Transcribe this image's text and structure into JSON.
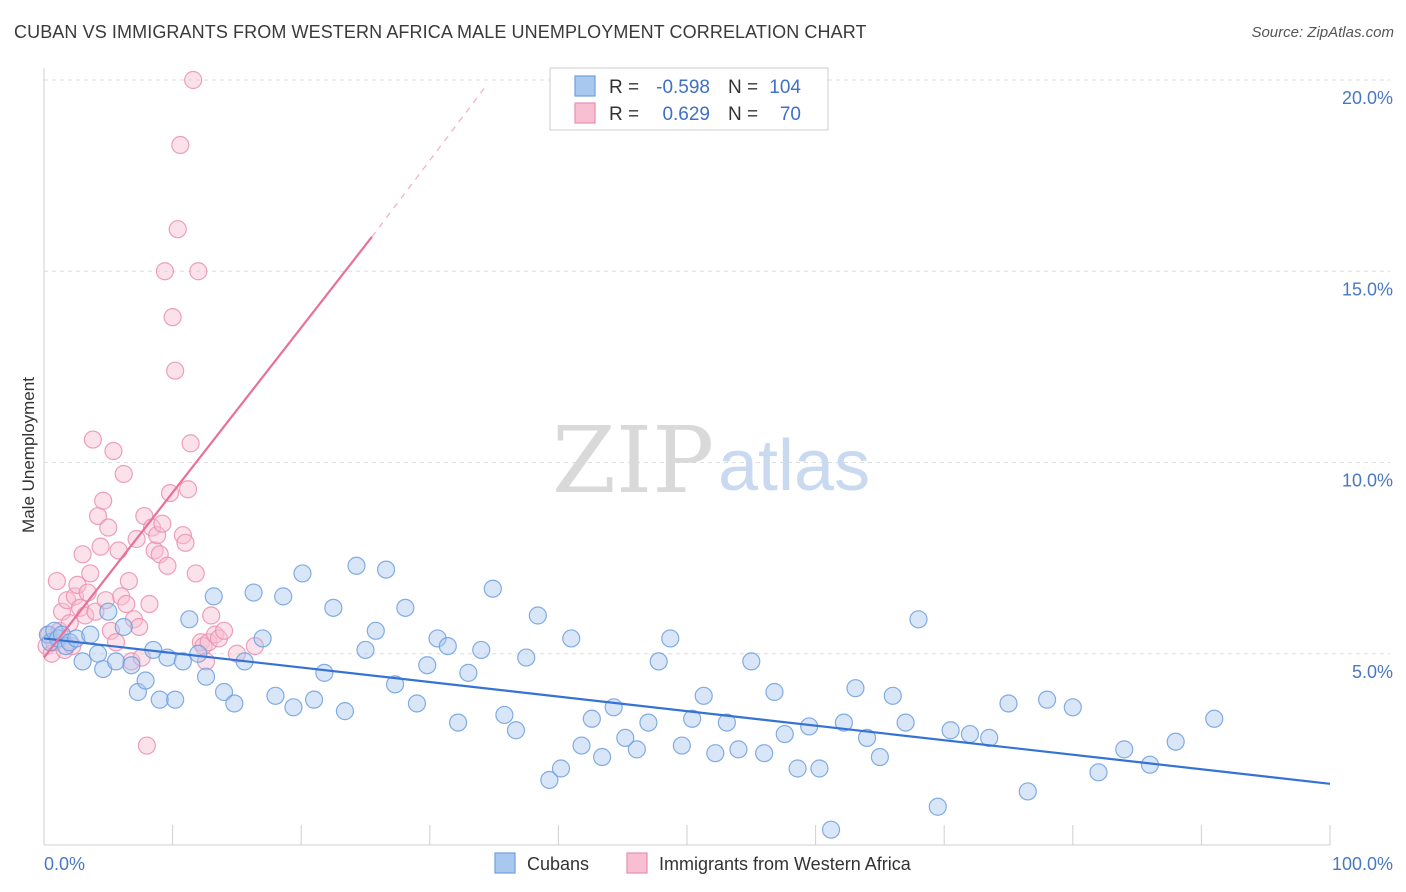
{
  "header": {
    "title": "CUBAN VS IMMIGRANTS FROM WESTERN AFRICA MALE UNEMPLOYMENT CORRELATION CHART",
    "source": "Source: ZipAtlas.com"
  },
  "watermark": {
    "zip": "ZIP",
    "atlas": "atlas"
  },
  "legend_box": {
    "rows": [
      {
        "r_label": "R =",
        "r_value": "-0.598",
        "n_label": "N =",
        "n_value": "104"
      },
      {
        "r_label": "R =",
        "r_value": "0.629",
        "n_label": "N =",
        "n_value": "70"
      }
    ]
  },
  "chart_data": {
    "type": "scatter",
    "title": "CUBAN VS IMMIGRANTS FROM WESTERN AFRICA MALE UNEMPLOYMENT CORRELATION CHART",
    "xlabel": "",
    "ylabel": "Male Unemployment",
    "xlim": [
      0,
      100
    ],
    "ylim": [
      0,
      20
    ],
    "x_tick_labels": [
      "0.0%",
      "100.0%"
    ],
    "y_ticks": [
      5,
      10,
      15,
      20
    ],
    "y_tick_labels": [
      "5.0%",
      "10.0%",
      "15.0%",
      "20.0%"
    ],
    "grid": true,
    "legend_position": "bottom",
    "series": [
      {
        "name": "Cubans",
        "color": "#7aaae8",
        "line_color": "#3473d4",
        "r": -0.598,
        "n": 104,
        "trend": {
          "x": [
            0,
            100
          ],
          "y": [
            5.4,
            1.6
          ]
        },
        "x": [
          0.3,
          0.5,
          0.8,
          1.1,
          1.4,
          1.7,
          2.0,
          2.5,
          3.0,
          3.6,
          4.2,
          4.6,
          5.0,
          5.6,
          6.2,
          6.8,
          7.3,
          7.9,
          8.5,
          9.0,
          9.6,
          10.2,
          10.8,
          11.3,
          12.0,
          12.6,
          13.2,
          14.0,
          14.8,
          15.6,
          16.3,
          17.0,
          18.0,
          18.6,
          19.4,
          20.1,
          21.0,
          21.8,
          22.5,
          23.4,
          24.3,
          25.0,
          25.8,
          26.6,
          27.3,
          28.1,
          29.0,
          29.8,
          30.6,
          31.4,
          32.2,
          33.0,
          34.0,
          34.9,
          35.8,
          36.7,
          37.5,
          38.4,
          39.3,
          40.2,
          41.0,
          41.8,
          42.6,
          43.4,
          44.3,
          45.2,
          46.1,
          47.0,
          47.8,
          48.7,
          49.6,
          50.4,
          51.3,
          52.2,
          53.1,
          54.0,
          55.0,
          56.0,
          56.8,
          57.6,
          58.6,
          59.5,
          60.3,
          61.2,
          62.2,
          63.1,
          64.0,
          65.0,
          66.0,
          67.0,
          68.0,
          69.5,
          70.5,
          72.0,
          73.5,
          75.0,
          76.5,
          78.0,
          80.0,
          82.0,
          84.0,
          86.0,
          88.0,
          91.0
        ],
        "y": [
          5.5,
          5.3,
          5.6,
          5.4,
          5.5,
          5.2,
          5.3,
          5.4,
          4.8,
          5.5,
          5.0,
          4.6,
          6.1,
          4.8,
          5.7,
          4.7,
          4.0,
          4.3,
          5.1,
          3.8,
          4.9,
          3.8,
          4.8,
          5.9,
          5.0,
          4.4,
          6.5,
          4.0,
          3.7,
          4.8,
          6.6,
          5.4,
          3.9,
          6.5,
          3.6,
          7.1,
          3.8,
          4.5,
          6.2,
          3.5,
          7.3,
          5.1,
          5.6,
          7.2,
          4.2,
          6.2,
          3.7,
          4.7,
          5.4,
          5.2,
          3.2,
          4.5,
          5.1,
          6.7,
          3.4,
          3.0,
          4.9,
          6.0,
          1.7,
          2.0,
          5.4,
          2.6,
          3.3,
          2.3,
          3.6,
          2.8,
          2.5,
          3.2,
          4.8,
          5.4,
          2.6,
          3.3,
          3.9,
          2.4,
          3.2,
          2.5,
          4.8,
          2.4,
          4.0,
          2.9,
          2.0,
          3.1,
          2.0,
          0.4,
          3.2,
          4.1,
          2.8,
          2.3,
          3.9,
          3.2,
          5.9,
          1.0,
          3.0,
          2.9,
          2.8,
          3.7,
          1.4,
          3.8,
          3.6,
          1.9,
          2.5,
          2.1,
          2.7,
          3.3
        ]
      },
      {
        "name": "Immigrants from Western Africa",
        "color": "#f4a3bd",
        "line_color": "#e8709a",
        "r": 0.629,
        "n": 70,
        "trend": {
          "x": [
            0,
            25.5
          ],
          "y": [
            4.9,
            15.9
          ]
        },
        "trend_dashed": {
          "x": [
            25.5,
            34.5
          ],
          "y": [
            15.9,
            19.9
          ]
        },
        "x": [
          0.2,
          0.4,
          0.6,
          0.8,
          1.0,
          1.2,
          1.4,
          1.6,
          1.8,
          2.0,
          2.2,
          2.4,
          2.6,
          2.8,
          3.0,
          3.2,
          3.4,
          3.6,
          3.8,
          4.0,
          4.2,
          4.4,
          4.6,
          4.8,
          5.0,
          5.2,
          5.4,
          5.6,
          5.8,
          6.0,
          6.2,
          6.4,
          6.6,
          6.8,
          7.0,
          7.2,
          7.4,
          7.6,
          7.8,
          8.0,
          8.2,
          8.4,
          8.6,
          8.8,
          9.0,
          9.2,
          9.4,
          9.6,
          9.8,
          10.0,
          10.2,
          10.4,
          10.6,
          10.8,
          11.0,
          11.2,
          11.4,
          11.6,
          11.8,
          12.0,
          12.2,
          12.4,
          12.6,
          12.8,
          13.0,
          13.3,
          13.6,
          14.0,
          15.0,
          16.4
        ],
        "y": [
          5.2,
          5.5,
          5.0,
          5.3,
          6.9,
          5.6,
          6.1,
          5.1,
          6.4,
          5.8,
          5.2,
          6.5,
          6.8,
          6.2,
          7.6,
          6.0,
          6.6,
          7.1,
          10.6,
          6.1,
          8.6,
          7.8,
          9.0,
          6.4,
          8.3,
          5.6,
          10.3,
          5.3,
          7.7,
          6.5,
          9.7,
          6.3,
          6.9,
          4.8,
          5.9,
          8.0,
          5.7,
          4.9,
          8.6,
          2.6,
          6.3,
          8.3,
          7.7,
          8.1,
          7.6,
          8.4,
          15.0,
          7.3,
          9.2,
          13.8,
          12.4,
          16.1,
          18.3,
          8.1,
          7.9,
          9.3,
          10.5,
          20.0,
          7.1,
          15.0,
          5.3,
          5.2,
          4.8,
          5.3,
          6.0,
          5.5,
          5.4,
          5.6,
          5.0,
          5.2
        ]
      }
    ]
  },
  "colors": {
    "axis_tick": "#4a78c0",
    "grid": "#dddddd",
    "cuban_fill": "#a9c8f0",
    "wafrica_fill": "#f7bfd1"
  }
}
